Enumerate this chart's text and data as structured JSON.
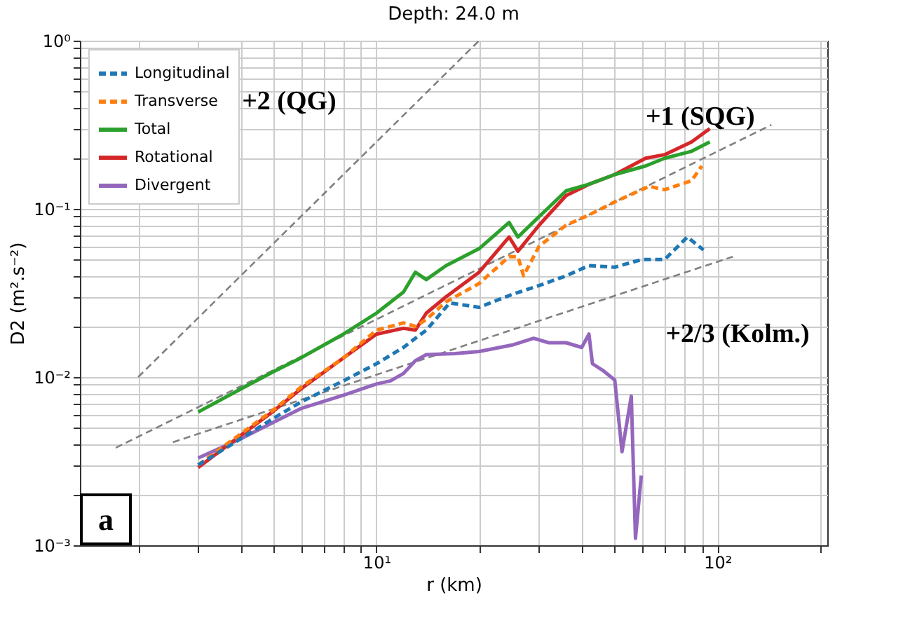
{
  "chart_data": {
    "type": "line",
    "title": "Depth: 24.0 m",
    "xlabel": "r (km)",
    "ylabel": "D2 (m².s⁻²)",
    "log": "xy",
    "grid": true,
    "legend": "top left",
    "xlim": [
      1.35,
      210
    ],
    "ylim": [
      0.001,
      1
    ],
    "xticks": [
      {
        "value": 2,
        "label": null
      },
      {
        "value": 3,
        "label": null
      },
      {
        "value": 4,
        "label": null
      },
      {
        "value": 5,
        "label": null
      },
      {
        "value": 6,
        "label": null
      },
      {
        "value": 7,
        "label": null
      },
      {
        "value": 8,
        "label": null
      },
      {
        "value": 9,
        "label": null
      },
      {
        "value": 10,
        "label": "10¹"
      },
      {
        "value": 20,
        "label": null
      },
      {
        "value": 30,
        "label": null
      },
      {
        "value": 40,
        "label": null
      },
      {
        "value": 50,
        "label": null
      },
      {
        "value": 60,
        "label": null
      },
      {
        "value": 70,
        "label": null
      },
      {
        "value": 80,
        "label": null
      },
      {
        "value": 90,
        "label": null
      },
      {
        "value": 100,
        "label": "10²"
      },
      {
        "value": 200,
        "label": null
      }
    ],
    "yticks": [
      {
        "value": 0.001,
        "label": "10⁻³"
      },
      {
        "value": 0.002,
        "label": null
      },
      {
        "value": 0.003,
        "label": null
      },
      {
        "value": 0.004,
        "label": null
      },
      {
        "value": 0.005,
        "label": null
      },
      {
        "value": 0.006,
        "label": null
      },
      {
        "value": 0.007,
        "label": null
      },
      {
        "value": 0.008,
        "label": null
      },
      {
        "value": 0.009,
        "label": null
      },
      {
        "value": 0.01,
        "label": "10⁻²"
      },
      {
        "value": 0.02,
        "label": null
      },
      {
        "value": 0.03,
        "label": null
      },
      {
        "value": 0.04,
        "label": null
      },
      {
        "value": 0.05,
        "label": null
      },
      {
        "value": 0.06,
        "label": null
      },
      {
        "value": 0.07,
        "label": null
      },
      {
        "value": 0.08,
        "label": null
      },
      {
        "value": 0.09,
        "label": null
      },
      {
        "value": 0.1,
        "label": "10⁻¹"
      },
      {
        "value": 0.2,
        "label": null
      },
      {
        "value": 0.3,
        "label": null
      },
      {
        "value": 0.4,
        "label": null
      },
      {
        "value": 0.5,
        "label": null
      },
      {
        "value": 0.6,
        "label": null
      },
      {
        "value": 0.7,
        "label": null
      },
      {
        "value": 0.8,
        "label": null
      },
      {
        "value": 0.9,
        "label": null
      },
      {
        "value": 1,
        "label": "10⁰"
      }
    ],
    "series": [
      {
        "name": "Longitudinal",
        "color": "#1f77b4",
        "line_style": "dashed",
        "x": [
          3,
          4,
          5,
          6,
          8,
          10,
          12,
          13,
          14,
          16.4,
          20,
          25,
          30,
          36,
          42,
          50,
          60,
          70,
          81.6,
          91
        ],
        "values": [
          0.003,
          0.0043,
          0.0057,
          0.0071,
          0.0095,
          0.012,
          0.015,
          0.017,
          0.019,
          0.0276,
          0.026,
          0.031,
          0.035,
          0.04,
          0.046,
          0.045,
          0.05,
          0.05,
          0.068,
          0.057
        ]
      },
      {
        "name": "Transverse",
        "color": "#ff7f0e",
        "line_style": "dashed",
        "x": [
          3,
          4,
          5,
          6,
          8,
          10,
          12,
          13,
          14,
          16,
          20,
          24.5,
          26,
          27,
          30,
          36,
          42,
          50,
          63,
          70,
          84,
          90
        ],
        "values": [
          0.003,
          0.0046,
          0.0064,
          0.0087,
          0.013,
          0.019,
          0.021,
          0.02,
          0.022,
          0.028,
          0.036,
          0.052,
          0.052,
          0.04,
          0.06,
          0.08,
          0.092,
          0.11,
          0.136,
          0.13,
          0.147,
          0.18
        ]
      },
      {
        "name": "Total",
        "color": "#2ca02c",
        "line_style": "solid",
        "x": [
          3,
          4,
          5,
          6,
          8,
          10,
          12,
          13,
          14,
          16,
          20,
          24.5,
          26,
          30,
          36,
          42,
          50,
          61.6,
          70,
          84,
          95
        ],
        "values": [
          0.0062,
          0.0085,
          0.0108,
          0.013,
          0.018,
          0.024,
          0.032,
          0.042,
          0.038,
          0.046,
          0.058,
          0.083,
          0.068,
          0.09,
          0.128,
          0.14,
          0.16,
          0.18,
          0.2,
          0.22,
          0.25
        ]
      },
      {
        "name": "Rotational",
        "color": "#d62728",
        "line_style": "solid",
        "x": [
          3,
          4,
          5,
          6,
          8,
          10,
          12,
          13,
          14,
          16,
          20,
          24.5,
          26,
          30,
          36,
          42,
          50,
          61.6,
          70,
          84,
          95
        ],
        "values": [
          0.0029,
          0.0045,
          0.0063,
          0.0085,
          0.013,
          0.018,
          0.0195,
          0.019,
          0.024,
          0.03,
          0.042,
          0.068,
          0.056,
          0.08,
          0.12,
          0.14,
          0.16,
          0.2,
          0.21,
          0.25,
          0.3
        ]
      },
      {
        "name": "Divergent",
        "color": "#9467bd",
        "line_style": "solid",
        "x": [
          3,
          4,
          5,
          6,
          8,
          10,
          11,
          12,
          13,
          14,
          17,
          20,
          25,
          28.9,
          32,
          36,
          40,
          42,
          43,
          46,
          50,
          52.5,
          55.9,
          57.5,
          59.8
        ],
        "values": [
          0.0033,
          0.0043,
          0.0054,
          0.0065,
          0.0078,
          0.0091,
          0.0095,
          0.0105,
          0.0125,
          0.0136,
          0.0138,
          0.0142,
          0.0155,
          0.017,
          0.016,
          0.016,
          0.015,
          0.018,
          0.012,
          0.011,
          0.0096,
          0.0036,
          0.0077,
          0.0011,
          0.0026
        ]
      },
      {
        "type": "line",
        "color": "#808080",
        "line_style": "dashed",
        "x": [
          2,
          20
        ],
        "values": [
          0.01,
          1
        ]
      },
      {
        "type": "line",
        "color": "#808080",
        "line_style": "dashed",
        "x": [
          1.72,
          144
        ],
        "values": [
          0.0038,
          0.316
        ]
      },
      {
        "type": "line",
        "color": "#808080",
        "line_style": "dashed",
        "x": [
          2.53,
          111
        ],
        "values": [
          0.0041,
          0.052
        ]
      }
    ],
    "annotations": [
      "+2 (QG)",
      "+1 (SQG)",
      "+2/3 (Kolm.)",
      "a"
    ]
  }
}
